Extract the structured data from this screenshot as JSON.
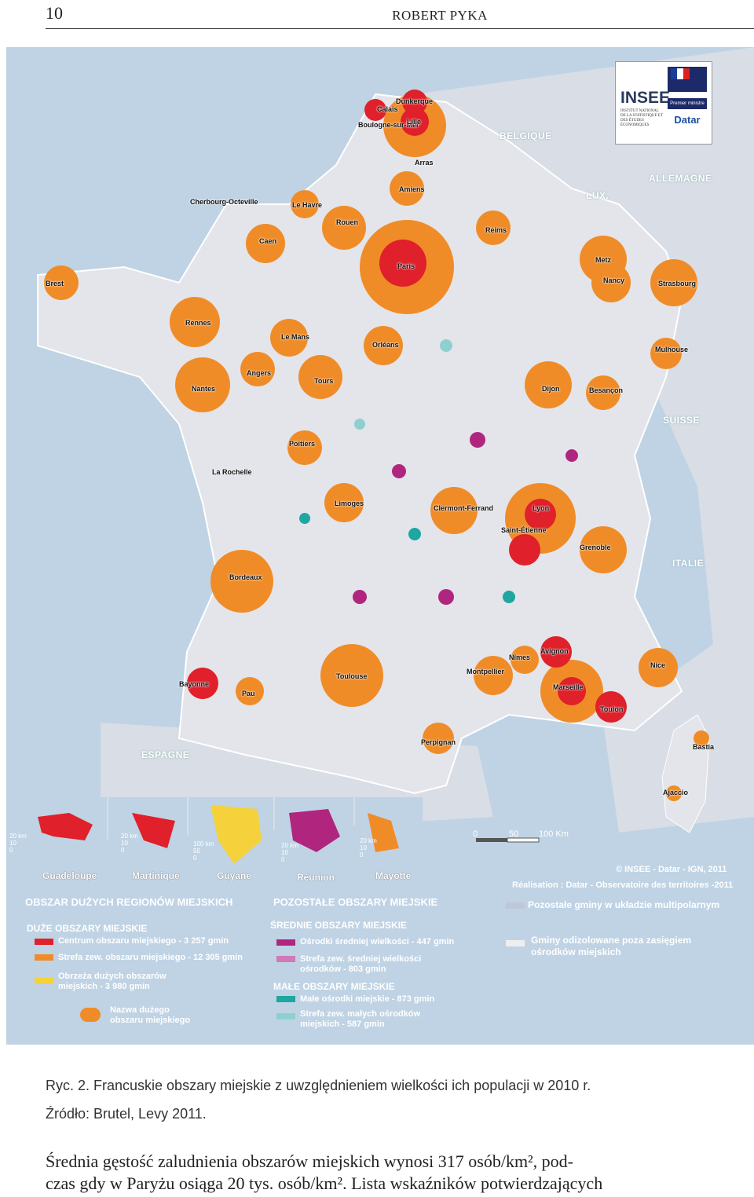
{
  "header": {
    "page_number": "10",
    "author": "ROBERT PYKA"
  },
  "map": {
    "countries": [
      "BELGIQUE",
      "ALLEMAGNE",
      "LUX.",
      "SUISSE",
      "ITALIE",
      "ESPAGNE"
    ],
    "cities": [
      "Dunkerque",
      "Calais",
      "Boulogne-sur-Mer",
      "Lille",
      "Arras",
      "Amiens",
      "Le Havre",
      "Rouen",
      "Caen",
      "Cherbourg-Octeville",
      "Brest",
      "Rennes",
      "Nantes",
      "Angers",
      "Le Mans",
      "Tours",
      "Orléans",
      "Paris",
      "Reims",
      "Metz",
      "Nancy",
      "Strasbourg",
      "Mulhouse",
      "Dijon",
      "Besançon",
      "Lyon",
      "Grenoble",
      "Limoges",
      "Clermont-Ferrand",
      "Poitiers",
      "La Rochelle",
      "Bordeaux",
      "Toulouse",
      "Montpellier",
      "Marseille",
      "Nice",
      "Toulon",
      "Perpignan",
      "Pau",
      "Bayonne",
      "Avignon",
      "Nîmes",
      "Saint-Étienne",
      "Bastia",
      "Ajaccio"
    ],
    "dom": [
      "Guadeloupe",
      "Martinique",
      "Guyane",
      "Réunion",
      "Mayotte"
    ],
    "dom_scales": [
      [
        "20 km",
        "10",
        "0"
      ],
      [
        "20 km",
        "10",
        "0"
      ],
      [
        "100 km",
        "50",
        "0"
      ],
      [
        "20 km",
        "10",
        "0"
      ],
      [
        "20 km",
        "10",
        "0"
      ]
    ],
    "scalebar": [
      "0",
      "50",
      "100 Km"
    ]
  },
  "legend": {
    "duze_regiony": "OBSZAR DUŻYCH REGIONÓW MIEJSKICH",
    "duze_obszary": "DUŻE OBSZARY MIEJSKIE",
    "centrum": "Centrum obszaru miejskiego - 3 257 gmin",
    "strefa": "Strefa zew. obszaru miejskiego - 12 305 gmin",
    "obrzeza_1": "Obrzeża dużych obszarów",
    "obrzeza_2": "miejskich - 3 980 gmin",
    "nazwa_1": "Nazwa dużego",
    "nazwa_2": "obszaru miejskiego",
    "pozostale": "POZOSTAŁE OBSZARY MIEJSKIE",
    "srednie": "ŚREDNIE OBSZARY MIEJSKIE",
    "osrodki_srednie": "Ośrodki średniej wielkości - 447 gmin",
    "strefa_srednie_1": "Strefa zew. średniej wielkości",
    "strefa_srednie_2": "ośrodków - 803 gmin",
    "male": "MAŁE OBSZARY MIEJSKIE",
    "male_osrodki": "Małe ośrodki miejskie - 873 gmin",
    "strefa_male_1": "Strefa zew. małych ośrodków",
    "strefa_male_2": "miejskich - 587 gmin",
    "copyright": "© INSEE - Datar - IGN, 2011",
    "realisation": "Réalisation : Datar - Observatoire des territoires -2011",
    "multipolar": "Pozostałe gminy w układzie multipolarnym",
    "izolowane_1": "Gminy odizolowane poza zasięgiem",
    "izolowane_2": "ośrodków miejskich",
    "colors": {
      "centrum": "#e0202a",
      "strefa": "#f08c28",
      "obrzeza": "#f5d23c",
      "srednie": "#b0267e",
      "strefa_srednie": "#d07ab8",
      "male": "#1ea6a0",
      "strefa_male": "#8ed0d0",
      "multipolar": "#c0c8d8",
      "izolowane": "#eeeeee"
    }
  },
  "logo": {
    "insee": "INSEE",
    "insee_sub": "INSTITUT NATIONAL DE LA STATISTIQUE ET DES ÉTUDES ÉCONOMIQUES",
    "pm": "Premier ministre",
    "datar": "Datar"
  },
  "caption": {
    "line1": "Ryc. 2. Francuskie obszary miejskie z uwzględnieniem wielkości ich populacji w 2010 r.",
    "line2": "Źródło: Brutel, Levy 2011."
  },
  "body": {
    "line1": "Średnia gęstość zaludnienia obszarów miejskich wynosi 317 osób/km², pod-",
    "line2": "czas gdy w Paryżu osiąga 20 tys. osób/km². Lista wskaźników potwierdzających"
  }
}
